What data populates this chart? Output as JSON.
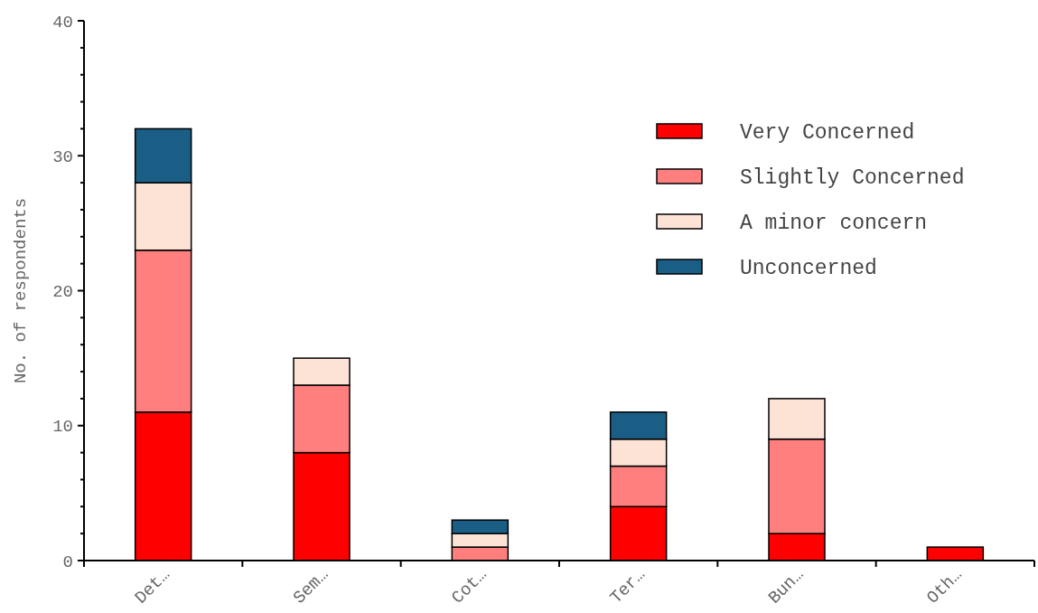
{
  "chart_data": {
    "type": "bar",
    "stacked": true,
    "ylabel": "No. of respondents",
    "categories": [
      "Det…",
      "Sem…",
      "Cot…",
      "Ter…",
      "Bun…",
      "Oth…"
    ],
    "series": [
      {
        "name": "Very Concerned",
        "color": "#ff0000",
        "values": [
          11,
          8,
          0,
          4,
          2,
          1
        ]
      },
      {
        "name": "Slightly Concerned",
        "color": "#ff7f7f",
        "values": [
          12,
          5,
          1,
          3,
          7,
          0
        ]
      },
      {
        "name": "A minor concern",
        "color": "#fde3d6",
        "values": [
          5,
          2,
          1,
          2,
          3,
          0
        ]
      },
      {
        "name": "Unconcerned",
        "color": "#1a5e85",
        "values": [
          4,
          0,
          1,
          2,
          0,
          0
        ]
      }
    ],
    "ylim": [
      0,
      40
    ],
    "yticks": [
      0,
      {
        "value": 2,
        "label": null
      },
      {
        "value": 4,
        "label": null
      },
      {
        "value": 6,
        "label": null
      },
      {
        "value": 8,
        "label": null
      },
      10,
      {
        "value": 12,
        "label": null
      },
      {
        "value": 14,
        "label": null
      },
      {
        "value": 16,
        "label": null
      },
      {
        "value": 18,
        "label": null
      },
      20,
      {
        "value": 22,
        "label": null
      },
      {
        "value": 24,
        "label": null
      },
      {
        "value": 26,
        "label": null
      },
      {
        "value": 28,
        "label": null
      },
      30,
      {
        "value": 32,
        "label": null
      },
      {
        "value": 34,
        "label": null
      },
      {
        "value": 36,
        "label": null
      },
      {
        "value": 38,
        "label": null
      },
      40
    ],
    "grid": false,
    "legend": "top right"
  }
}
